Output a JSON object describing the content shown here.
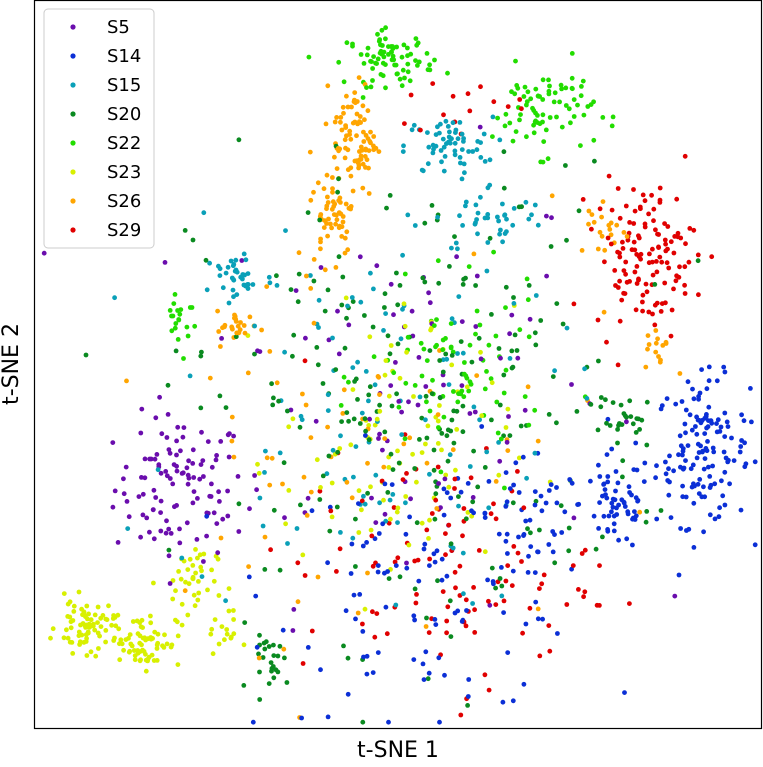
{
  "chart_data": {
    "type": "scatter",
    "title": "",
    "xlabel": "t-SNE 1",
    "ylabel": "t-SNE 2",
    "xlim": [
      0,
      100
    ],
    "ylim": [
      0,
      100
    ],
    "grid": false,
    "ticks": false,
    "legend_position": "top-left",
    "series": [
      {
        "name": "S5",
        "color": "#6a0dad",
        "clusters": [
          {
            "cx": 20,
            "cy": 33,
            "sx": 4.5,
            "sy": 5,
            "n": 110
          },
          {
            "cx": 50,
            "cy": 48,
            "sx": 14,
            "sy": 15,
            "n": 90
          }
        ]
      },
      {
        "name": "S14",
        "color": "#0b2fd6",
        "clusters": [
          {
            "cx": 92,
            "cy": 38,
            "sx": 3.2,
            "sy": 5,
            "n": 140
          },
          {
            "cx": 80,
            "cy": 31,
            "sx": 2.5,
            "sy": 3.5,
            "n": 60
          },
          {
            "cx": 68,
            "cy": 28,
            "sx": 4,
            "sy": 4,
            "n": 40
          },
          {
            "cx": 55,
            "cy": 20,
            "sx": 11,
            "sy": 9,
            "n": 110
          }
        ]
      },
      {
        "name": "S15",
        "color": "#0aa0b8",
        "clusters": [
          {
            "cx": 57,
            "cy": 80,
            "sx": 3,
            "sy": 2,
            "n": 60
          },
          {
            "cx": 28,
            "cy": 62,
            "sx": 2.5,
            "sy": 1.8,
            "n": 35
          },
          {
            "cx": 63,
            "cy": 70,
            "sx": 4,
            "sy": 2.5,
            "n": 40
          },
          {
            "cx": 45,
            "cy": 44,
            "sx": 13,
            "sy": 14,
            "n": 110
          }
        ]
      },
      {
        "name": "S20",
        "color": "#0a8a20",
        "clusters": [
          {
            "cx": 52,
            "cy": 45,
            "sx": 15,
            "sy": 16,
            "n": 230
          },
          {
            "cx": 82,
            "cy": 42,
            "sx": 2,
            "sy": 2,
            "n": 25
          },
          {
            "cx": 33,
            "cy": 9,
            "sx": 1.5,
            "sy": 1.8,
            "n": 25
          }
        ]
      },
      {
        "name": "S22",
        "color": "#22dd00",
        "clusters": [
          {
            "cx": 49,
            "cy": 92,
            "sx": 3,
            "sy": 1.8,
            "n": 80
          },
          {
            "cx": 70,
            "cy": 85,
            "sx": 3.5,
            "sy": 3,
            "n": 80
          },
          {
            "cx": 20,
            "cy": 57,
            "sx": 1.2,
            "sy": 2.5,
            "n": 20
          },
          {
            "cx": 58,
            "cy": 48,
            "sx": 6,
            "sy": 6,
            "n": 80
          }
        ]
      },
      {
        "name": "S23",
        "color": "#d8f000",
        "clusters": [
          {
            "cx": 7,
            "cy": 14,
            "sx": 2,
            "sy": 1.8,
            "n": 70
          },
          {
            "cx": 15,
            "cy": 12,
            "sx": 2.5,
            "sy": 1.8,
            "n": 70
          },
          {
            "cx": 21,
            "cy": 20,
            "sx": 2,
            "sy": 3,
            "n": 40
          },
          {
            "cx": 26,
            "cy": 13,
            "sx": 1,
            "sy": 1.5,
            "n": 15
          },
          {
            "cx": 50,
            "cy": 38,
            "sx": 8,
            "sy": 10,
            "n": 90
          }
        ]
      },
      {
        "name": "S26",
        "color": "#ffa500",
        "clusters": [
          {
            "cx": 44,
            "cy": 81,
            "sx": 1.5,
            "sy": 4,
            "n": 90
          },
          {
            "cx": 41,
            "cy": 71,
            "sx": 1.5,
            "sy": 3,
            "n": 50
          },
          {
            "cx": 28,
            "cy": 55,
            "sx": 1.5,
            "sy": 1.2,
            "n": 25
          },
          {
            "cx": 86,
            "cy": 52,
            "sx": 1,
            "sy": 1.5,
            "n": 15
          },
          {
            "cx": 78,
            "cy": 69,
            "sx": 2,
            "sy": 2,
            "n": 20
          },
          {
            "cx": 45,
            "cy": 42,
            "sx": 14,
            "sy": 15,
            "n": 70
          }
        ]
      },
      {
        "name": "S29",
        "color": "#e00000",
        "clusters": [
          {
            "cx": 84,
            "cy": 65,
            "sx": 3.5,
            "sy": 5,
            "n": 130
          },
          {
            "cx": 57,
            "cy": 22,
            "sx": 10,
            "sy": 8,
            "n": 110
          },
          {
            "cx": 60,
            "cy": 85,
            "sx": 5,
            "sy": 2,
            "n": 15
          }
        ]
      }
    ]
  }
}
